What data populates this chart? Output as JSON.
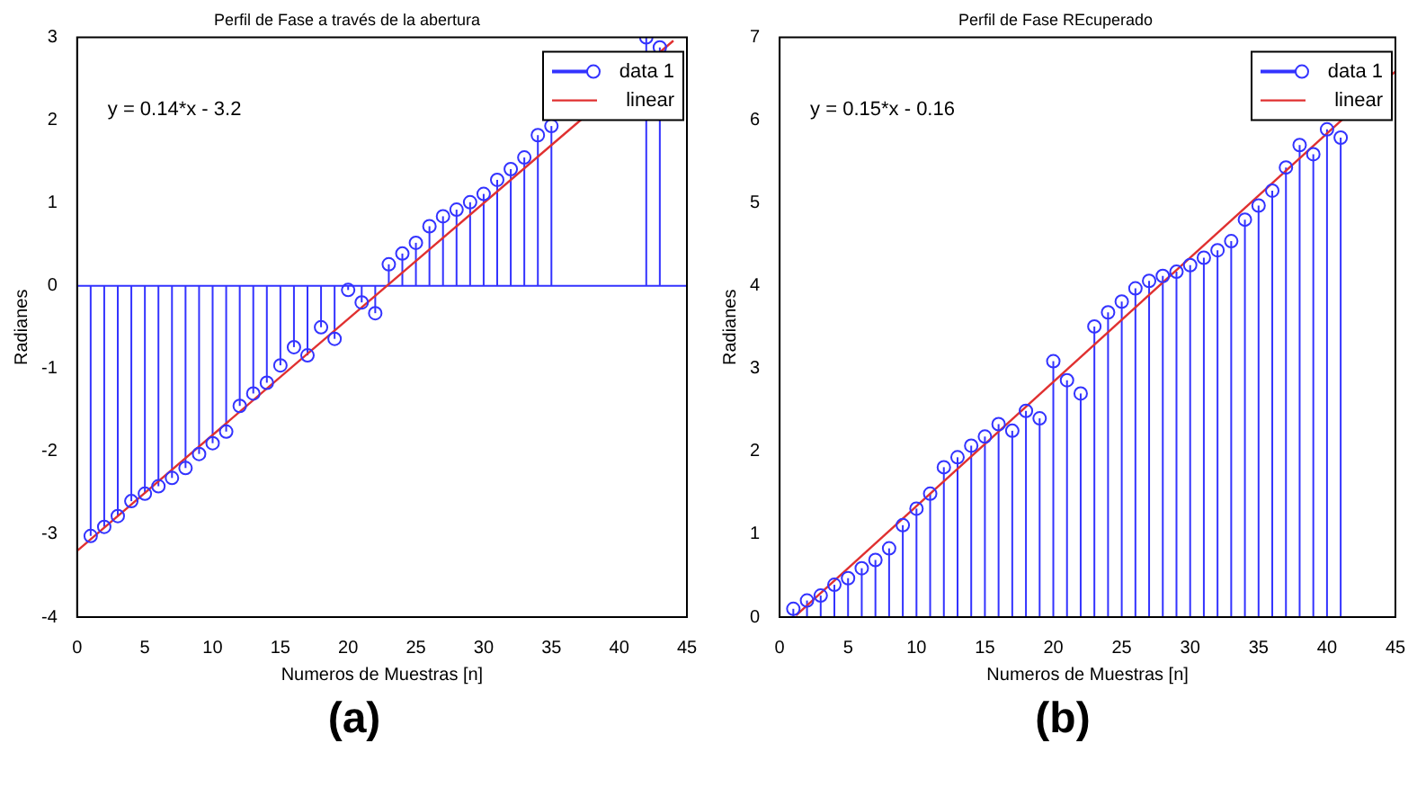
{
  "chart_data": [
    {
      "type": "lollipop",
      "title": "Perfil de Fase a través de la abertura",
      "xlabel": "Numeros de Muestras [n]",
      "ylabel": "Radianes",
      "xlim": [
        0,
        45
      ],
      "xticks": [
        0,
        5,
        10,
        15,
        20,
        25,
        30,
        35,
        40,
        45
      ],
      "ylim": [
        -4,
        3
      ],
      "yticks": [
        -4,
        -3,
        -2,
        -1,
        0,
        1,
        2,
        3
      ],
      "legend": "top right",
      "annotations": [
        "y = 0.14*x - 3.2",
        "(a)"
      ],
      "ref_lines": [
        {
          "axis": "y",
          "value": 0,
          "color": "#3333ff"
        }
      ],
      "series": [
        {
          "name": "data 1",
          "marker": "circle",
          "color": "#3333ff",
          "x": [
            1,
            2,
            3,
            4,
            5,
            6,
            7,
            8,
            9,
            10,
            11,
            12,
            13,
            14,
            15,
            16,
            17,
            18,
            19,
            20,
            21,
            22,
            23,
            24,
            25,
            26,
            27,
            28,
            29,
            30,
            31,
            32,
            33,
            34,
            35,
            36,
            37,
            38,
            39,
            40,
            41,
            42,
            43
          ],
          "values": [
            -3.02,
            -2.91,
            -2.78,
            -2.6,
            -2.51,
            -2.42,
            -2.32,
            -2.2,
            -2.03,
            -1.9,
            -1.76,
            -1.45,
            -1.3,
            -1.17,
            -0.96,
            -0.74,
            -0.84,
            -0.5,
            -0.64,
            -0.05,
            -0.2,
            -0.33,
            0.26,
            0.39,
            0.52,
            0.72,
            0.84,
            0.92,
            1.01,
            1.11,
            1.28,
            1.41,
            1.55,
            1.82,
            1.93,
            null,
            null,
            null,
            null,
            null,
            null,
            3.0,
            2.88
          ]
        },
        {
          "name": "linear",
          "type": "line",
          "color": "#e03030",
          "x": [
            0,
            44
          ],
          "values": [
            -3.2,
            2.96
          ]
        }
      ]
    },
    {
      "type": "lollipop",
      "title": "Perfil de Fase REcuperado",
      "xlabel": "Numeros de Muestras [n]",
      "ylabel": "Radianes",
      "xlim": [
        0,
        45
      ],
      "xticks": [
        0,
        5,
        10,
        15,
        20,
        25,
        30,
        35,
        40,
        45
      ],
      "ylim": [
        0,
        7
      ],
      "yticks": [
        0,
        1,
        2,
        3,
        4,
        5,
        6,
        7
      ],
      "legend": "top right",
      "annotations": [
        "y = 0.15*x - 0.16",
        "(b)"
      ],
      "series": [
        {
          "name": "data 1",
          "marker": "circle",
          "color": "#3333ff",
          "x": [
            1,
            2,
            3,
            4,
            5,
            6,
            7,
            8,
            9,
            10,
            11,
            12,
            13,
            14,
            15,
            16,
            17,
            18,
            19,
            20,
            21,
            22,
            23,
            24,
            25,
            26,
            27,
            28,
            29,
            30,
            31,
            32,
            33,
            34,
            35,
            36,
            37,
            38,
            39,
            40,
            41
          ],
          "values": [
            0.1,
            0.2,
            0.26,
            0.39,
            0.47,
            0.59,
            0.69,
            0.83,
            1.11,
            1.31,
            1.49,
            1.81,
            1.93,
            2.07,
            2.18,
            2.33,
            2.25,
            2.49,
            2.4,
            3.09,
            2.86,
            2.7,
            3.51,
            3.68,
            3.81,
            3.97,
            4.06,
            4.12,
            4.17,
            4.25,
            4.34,
            4.43,
            4.54,
            4.8,
            4.97,
            5.15,
            5.43,
            5.7,
            5.59,
            5.89,
            5.79
          ]
        },
        {
          "name": "linear",
          "type": "line",
          "color": "#e03030",
          "x": [
            1.2,
            45
          ],
          "values": [
            0.02,
            6.59
          ]
        }
      ]
    }
  ]
}
